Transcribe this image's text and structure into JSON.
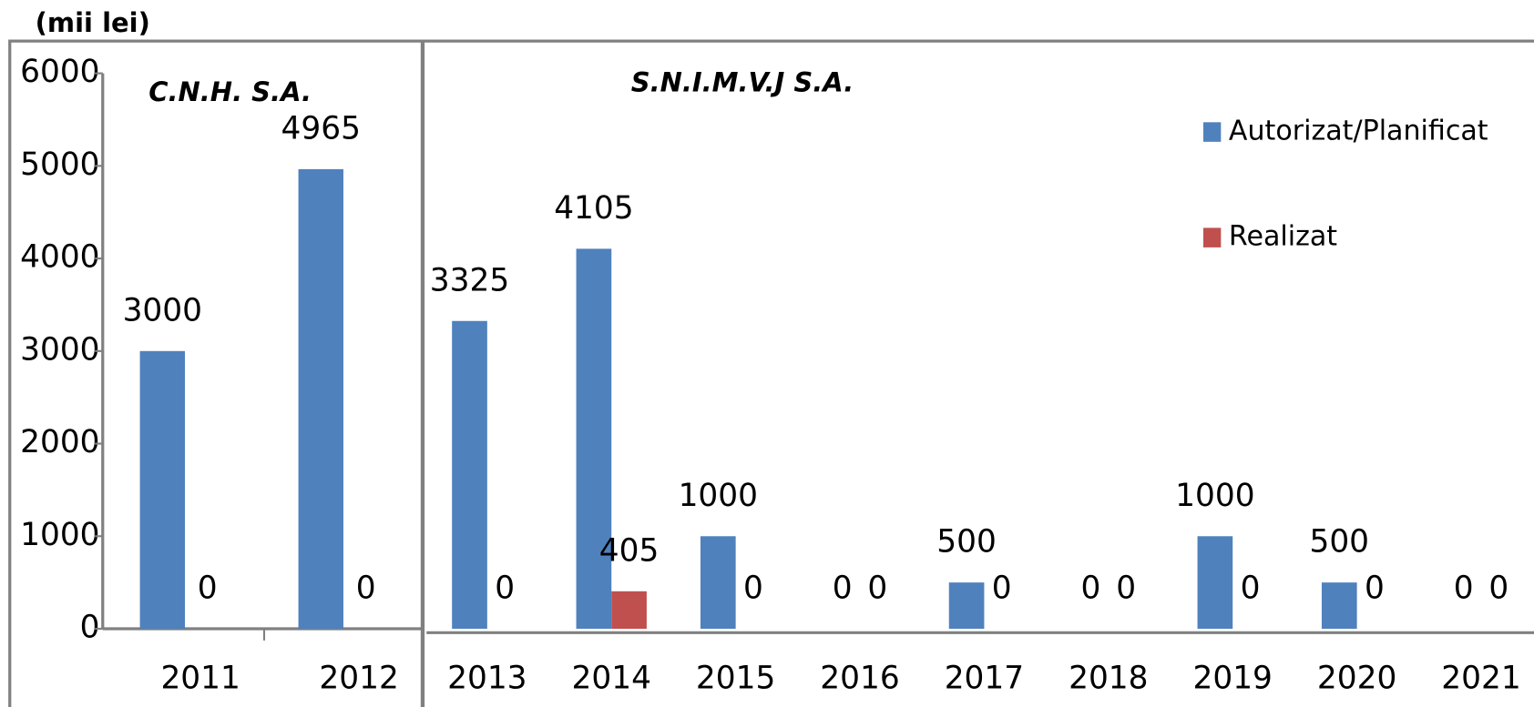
{
  "chart_data": {
    "type": "bar",
    "unit_label": "(mii lei)",
    "panel_labels": [
      "C.N.H.  S.A.",
      "S.N.I.M.V.J   S.A."
    ],
    "categories": [
      "2011",
      "2012",
      "2013",
      "2014",
      "2015",
      "2016",
      "2017",
      "2018",
      "2019",
      "2020",
      "2021"
    ],
    "series": [
      {
        "name": "Autorizat/Planificat",
        "color": "#4f81bd",
        "values": [
          3000,
          4965,
          3325,
          4105,
          1000,
          0,
          500,
          0,
          1000,
          500,
          0
        ]
      },
      {
        "name": "Realizat",
        "color": "#c0504d",
        "values": [
          0,
          0,
          0,
          405,
          0,
          0,
          0,
          0,
          0,
          0,
          0
        ]
      }
    ],
    "ylim": [
      0,
      6000
    ],
    "yticks": [
      0,
      1000,
      2000,
      3000,
      4000,
      5000,
      6000
    ]
  }
}
